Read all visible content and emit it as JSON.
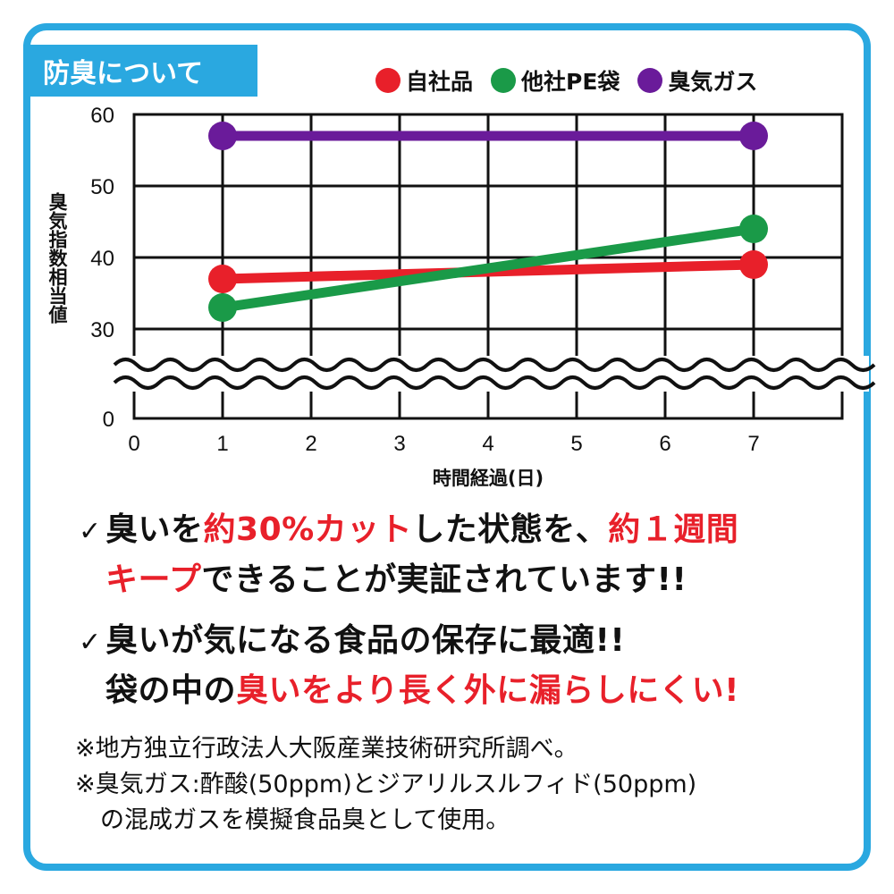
{
  "section_title": "防臭について",
  "legend": [
    {
      "label": "自社品",
      "color": "#e8202a"
    },
    {
      "label": "他社PE袋",
      "color": "#1a9a48"
    },
    {
      "label": "臭気ガス",
      "color": "#6a1b9a"
    }
  ],
  "chart_data": {
    "type": "line",
    "title": "",
    "xlabel": "時間経過(日)",
    "ylabel": "臭気指数相当値",
    "xlim": [
      0,
      8
    ],
    "x_ticks": [
      0,
      1,
      2,
      3,
      4,
      5,
      6,
      7
    ],
    "y_ticks": [
      0,
      30,
      40,
      50,
      60
    ],
    "ylim": [
      0,
      60
    ],
    "y_axis_break": "between 0 and 30",
    "grid": true,
    "legend_position": "top-right",
    "series": [
      {
        "name": "自社品",
        "color": "#e8202a",
        "x": [
          1,
          7
        ],
        "y": [
          37,
          39
        ]
      },
      {
        "name": "他社PE袋",
        "color": "#1a9a48",
        "x": [
          1,
          7
        ],
        "y": [
          33,
          44
        ]
      },
      {
        "name": "臭気ガス",
        "color": "#6a1b9a",
        "x": [
          1,
          7
        ],
        "y": [
          57,
          57
        ]
      }
    ]
  },
  "claims": [
    {
      "line1": [
        {
          "text": "臭いを",
          "highlight": false
        },
        {
          "text": "約30%カット",
          "highlight": true
        },
        {
          "text": "した状態を、",
          "highlight": false
        },
        {
          "text": "約１週間",
          "highlight": true
        }
      ],
      "line2": [
        {
          "text": "キープ",
          "highlight": true
        },
        {
          "text": "できることが実証されています!!",
          "highlight": false
        }
      ]
    },
    {
      "line1": [
        {
          "text": "臭いが気になる食品の保存に最適!!",
          "highlight": false
        }
      ],
      "line2": [
        {
          "text": "袋の中の",
          "highlight": false
        },
        {
          "text": "臭いをより長く外に漏らしにくい!",
          "highlight": true
        }
      ]
    }
  ],
  "notes": {
    "note1": "※地方独立行政法人大阪産業技術研究所調べ。",
    "note2": "※臭気ガス:酢酸(50ppm)とジアリルスルフィド(50ppm)",
    "note2_cont": "の混成ガスを模擬食品臭として使用。"
  },
  "check_mark": "✓"
}
